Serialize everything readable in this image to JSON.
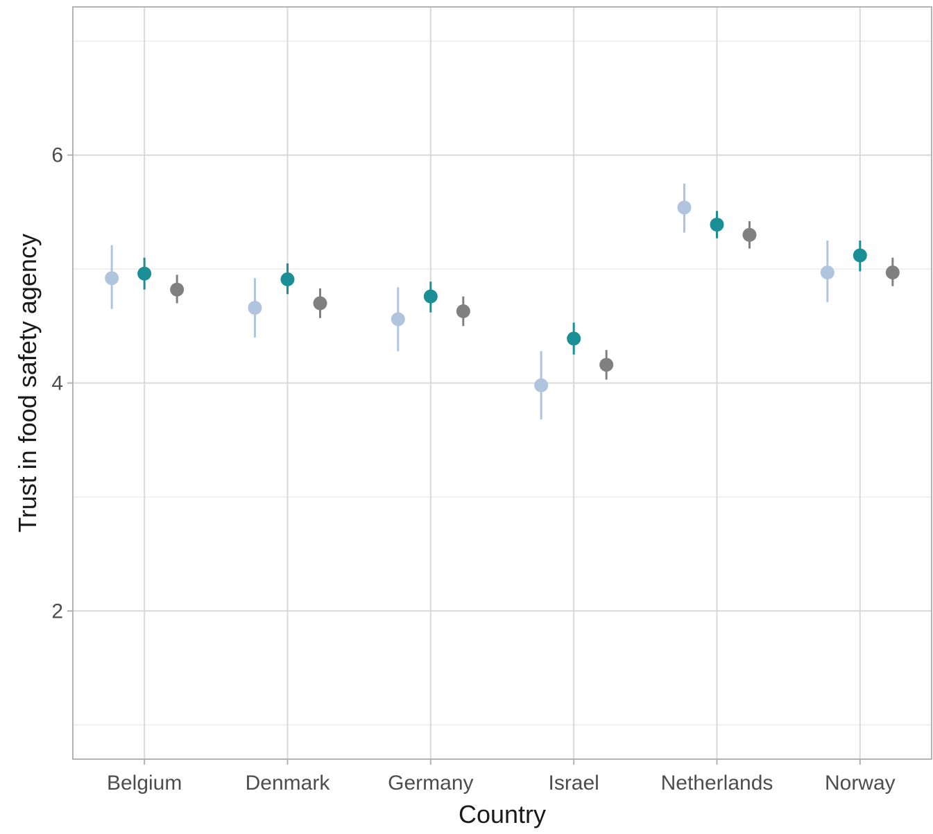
{
  "chart_data": {
    "type": "scatter",
    "title": "",
    "xlabel": "Country",
    "ylabel": "Trust in food safety agency",
    "categories": [
      "Belgium",
      "Denmark",
      "Germany",
      "Israel",
      "Netherlands",
      "Norway"
    ],
    "ylim": [
      0.7,
      7.3
    ],
    "yticks": [
      2,
      4,
      6
    ],
    "yticks_minor": [
      1,
      3,
      5,
      7
    ],
    "grid": true,
    "legend": "none",
    "series": [
      {
        "color": "#b0c4de",
        "values": [
          4.92,
          4.66,
          4.56,
          3.98,
          5.54,
          4.97
        ],
        "lower": [
          4.65,
          4.4,
          4.28,
          3.68,
          5.32,
          4.71
        ],
        "upper": [
          5.21,
          4.92,
          4.84,
          4.28,
          5.75,
          5.25
        ]
      },
      {
        "color": "#1a8f96",
        "values": [
          4.96,
          4.91,
          4.76,
          4.39,
          5.39,
          5.12
        ],
        "lower": [
          4.82,
          4.78,
          4.62,
          4.25,
          5.27,
          4.98
        ],
        "upper": [
          5.1,
          5.05,
          4.89,
          4.53,
          5.51,
          5.25
        ]
      },
      {
        "color": "#808080",
        "values": [
          4.82,
          4.7,
          4.63,
          4.16,
          5.3,
          4.97
        ],
        "lower": [
          4.7,
          4.57,
          4.5,
          4.03,
          5.18,
          4.85
        ],
        "upper": [
          4.95,
          4.83,
          4.76,
          4.29,
          5.42,
          5.1
        ]
      }
    ]
  }
}
